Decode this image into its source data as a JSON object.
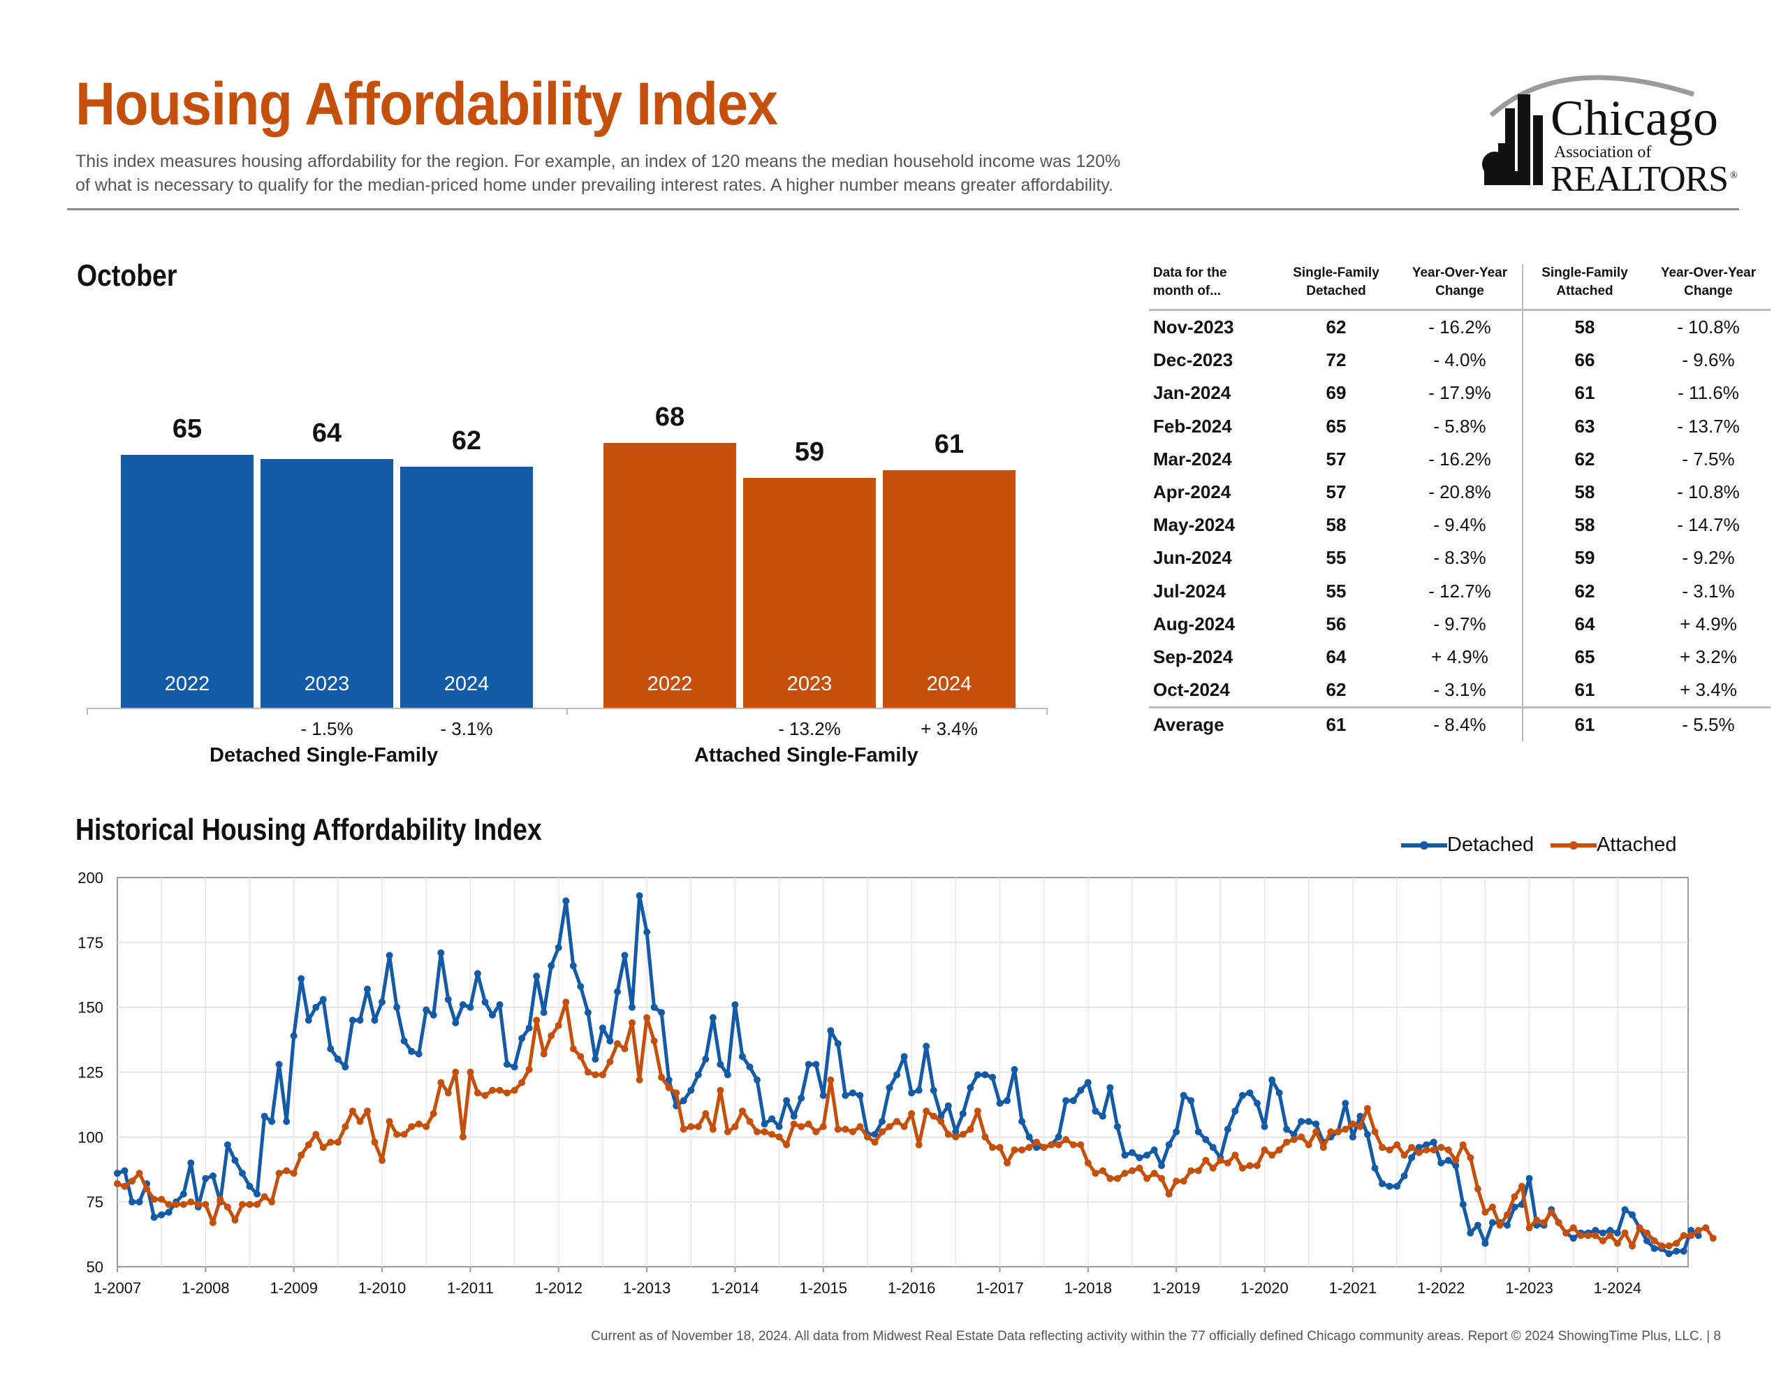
{
  "header": {
    "title": "Housing Affordability Index",
    "description_line1": "This index measures housing affordability for the region. For example, an index of 120 means the median household income was 120%",
    "description_line2": "of what is necessary to qualify for the median-priced home under prevailing interest rates. A higher number means greater affordability."
  },
  "logo": {
    "line1": "Chicago",
    "line2": "Association of",
    "line3": "REALTORS",
    "mark": "®"
  },
  "colors": {
    "title": "#c4500b",
    "detached": "#135aa7",
    "attached": "#c4500b"
  },
  "october": {
    "title": "October",
    "groups": [
      {
        "label": "Detached Single-Family",
        "bars": [
          {
            "year": "2022",
            "value": 65,
            "change": ""
          },
          {
            "year": "2023",
            "value": 64,
            "change": "- 1.5%"
          },
          {
            "year": "2024",
            "value": 62,
            "change": "- 3.1%"
          }
        ]
      },
      {
        "label": "Attached Single-Family",
        "bars": [
          {
            "year": "2022",
            "value": 68,
            "change": ""
          },
          {
            "year": "2023",
            "value": 59,
            "change": "- 13.2%"
          },
          {
            "year": "2024",
            "value": 61,
            "change": "+ 3.4%"
          }
        ]
      }
    ]
  },
  "table": {
    "headers": [
      "Data for the month of...",
      "Single-Family Detached",
      "Year-Over-Year Change",
      "Single-Family Attached",
      "Year-Over-Year Change"
    ],
    "header_lines": [
      [
        "Data for the",
        "month of..."
      ],
      [
        "Single-Family",
        "Detached"
      ],
      [
        "Year-Over-Year",
        "Change"
      ],
      [
        "Single-Family",
        "Attached"
      ],
      [
        "Year-Over-Year",
        "Change"
      ]
    ],
    "rows": [
      [
        "Nov-2023",
        "62",
        "- 16.2%",
        "58",
        "- 10.8%"
      ],
      [
        "Dec-2023",
        "72",
        "- 4.0%",
        "66",
        "- 9.6%"
      ],
      [
        "Jan-2024",
        "69",
        "- 17.9%",
        "61",
        "- 11.6%"
      ],
      [
        "Feb-2024",
        "65",
        "- 5.8%",
        "63",
        "- 13.7%"
      ],
      [
        "Mar-2024",
        "57",
        "- 16.2%",
        "62",
        "- 7.5%"
      ],
      [
        "Apr-2024",
        "57",
        "- 20.8%",
        "58",
        "- 10.8%"
      ],
      [
        "May-2024",
        "58",
        "- 9.4%",
        "58",
        "- 14.7%"
      ],
      [
        "Jun-2024",
        "55",
        "- 8.3%",
        "59",
        "- 9.2%"
      ],
      [
        "Jul-2024",
        "55",
        "- 12.7%",
        "62",
        "- 3.1%"
      ],
      [
        "Aug-2024",
        "56",
        "- 9.7%",
        "64",
        "+ 4.9%"
      ],
      [
        "Sep-2024",
        "64",
        "+ 4.9%",
        "65",
        "+ 3.2%"
      ],
      [
        "Oct-2024",
        "62",
        "- 3.1%",
        "61",
        "+ 3.4%"
      ]
    ],
    "average": [
      "Average",
      "61",
      "- 8.4%",
      "61",
      "- 5.5%"
    ]
  },
  "historical": {
    "title": "Historical Housing Affordability Index",
    "legend": [
      "Detached",
      "Attached"
    ]
  },
  "chart_data": [
    {
      "type": "bar",
      "title": "October",
      "categories": [
        "2022",
        "2023",
        "2024"
      ],
      "series": [
        {
          "name": "Detached Single-Family",
          "values": [
            65,
            64,
            62
          ],
          "change": [
            "",
            "- 1.5%",
            "- 3.1%"
          ]
        },
        {
          "name": "Attached Single-Family",
          "values": [
            68,
            59,
            61
          ],
          "change": [
            "",
            "- 13.2%",
            "+ 3.4%"
          ]
        }
      ]
    },
    {
      "type": "line",
      "title": "Historical Housing Affordability Index",
      "x_start": "1-2007",
      "x_ticks": [
        "1-2007",
        "1-2008",
        "1-2009",
        "1-2010",
        "1-2011",
        "1-2012",
        "1-2013",
        "1-2014",
        "1-2015",
        "1-2016",
        "1-2017",
        "1-2018",
        "1-2019",
        "1-2020",
        "1-2021",
        "1-2022",
        "1-2023",
        "1-2024"
      ],
      "ylim": [
        50,
        200
      ],
      "y_ticks": [
        50,
        75,
        100,
        125,
        150,
        175,
        200
      ],
      "grid": true,
      "legend_position": "top-right",
      "series": [
        {
          "name": "Detached",
          "values": [
            86,
            87,
            75,
            75,
            82,
            69,
            70,
            71,
            75,
            78,
            90,
            73,
            84,
            85,
            75,
            97,
            91,
            86,
            81,
            78,
            108,
            106,
            128,
            106,
            139,
            161,
            145,
            150,
            153,
            134,
            130,
            127,
            145,
            145,
            157,
            145,
            152,
            170,
            150,
            137,
            133,
            132,
            149,
            147,
            171,
            153,
            144,
            151,
            150,
            163,
            152,
            147,
            151,
            128,
            127,
            138,
            142,
            162,
            148,
            166,
            173,
            191,
            166,
            158,
            148,
            130,
            142,
            137,
            156,
            170,
            150,
            193,
            179,
            150,
            148,
            122,
            112,
            114,
            118,
            124,
            130,
            146,
            128,
            124,
            151,
            131,
            127,
            122,
            105,
            107,
            104,
            114,
            108,
            115,
            128,
            128,
            116,
            141,
            136,
            116,
            117,
            116,
            101,
            101,
            106,
            119,
            124,
            131,
            117,
            118,
            135,
            118,
            108,
            112,
            102,
            109,
            119,
            124,
            124,
            123,
            113,
            114,
            126,
            106,
            100,
            96,
            96,
            97,
            100,
            114,
            114,
            118,
            121,
            110,
            108,
            119,
            104,
            93,
            94,
            92,
            93,
            95,
            89,
            97,
            102,
            116,
            114,
            102,
            99,
            96,
            92,
            103,
            110,
            116,
            117,
            113,
            104,
            122,
            117,
            103,
            101,
            106,
            106,
            105,
            98,
            100,
            102,
            113,
            100,
            108,
            101,
            88,
            82,
            81,
            81,
            85,
            92,
            96,
            97,
            98,
            90,
            91,
            89,
            74,
            63,
            66,
            59,
            67,
            67,
            66,
            73,
            74,
            84,
            66,
            66,
            72,
            67,
            63,
            61,
            63,
            63,
            64,
            63,
            64,
            63,
            72,
            70,
            65,
            60,
            57,
            57,
            55,
            56,
            56,
            64,
            62
          ]
        },
        {
          "name": "Attached",
          "values": [
            82,
            81,
            83,
            86,
            80,
            76,
            76,
            74,
            74,
            74,
            75,
            74,
            74,
            67,
            76,
            73,
            68,
            74,
            74,
            74,
            77,
            75,
            86,
            87,
            86,
            93,
            97,
            101,
            96,
            98,
            98,
            104,
            110,
            106,
            110,
            98,
            91,
            106,
            101,
            101,
            104,
            105,
            104,
            109,
            121,
            117,
            125,
            100,
            125,
            117,
            116,
            118,
            118,
            117,
            118,
            121,
            126,
            145,
            132,
            139,
            143,
            152,
            134,
            131,
            125,
            124,
            124,
            129,
            136,
            134,
            144,
            122,
            146,
            137,
            123,
            119,
            117,
            103,
            104,
            104,
            109,
            103,
            118,
            102,
            104,
            110,
            106,
            102,
            102,
            101,
            100,
            97,
            105,
            104,
            105,
            102,
            104,
            122,
            103,
            103,
            102,
            104,
            100,
            98,
            102,
            104,
            106,
            104,
            109,
            97,
            110,
            108,
            106,
            101,
            100,
            101,
            103,
            110,
            100,
            96,
            96,
            90,
            95,
            95,
            96,
            98,
            96,
            97,
            97,
            99,
            97,
            97,
            90,
            86,
            87,
            84,
            84,
            86,
            87,
            88,
            84,
            86,
            84,
            78,
            83,
            83,
            87,
            87,
            91,
            88,
            91,
            90,
            93,
            88,
            89,
            89,
            95,
            93,
            95,
            98,
            99,
            100,
            97,
            102,
            96,
            102,
            102,
            103,
            105,
            104,
            111,
            102,
            96,
            95,
            97,
            93,
            96,
            94,
            95,
            95,
            96,
            95,
            91,
            97,
            92,
            80,
            71,
            73,
            66,
            70,
            77,
            81,
            65,
            68,
            67,
            71,
            67,
            63,
            65,
            62,
            62,
            62,
            60,
            62,
            59,
            63,
            58,
            65,
            63,
            60,
            58,
            58,
            59,
            62,
            62,
            64,
            65,
            61
          ]
        }
      ]
    }
  ],
  "footer": "Current as of November 18, 2024.  All data from Midwest Real Estate Data reflecting activity within the 77 officially defined Chicago community areas. Report © 2024 ShowingTime Plus, LLC.  |  8"
}
